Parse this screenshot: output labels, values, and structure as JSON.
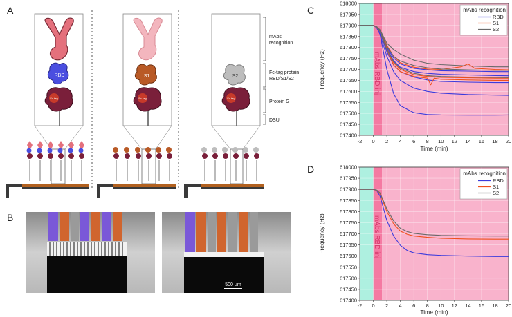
{
  "panel_labels": {
    "a": "A",
    "b": "B",
    "c": "C",
    "d": "D"
  },
  "schematic": {
    "inset_labels": {
      "rbd": "RBD",
      "s1": "S1",
      "s2": "S2",
      "fc_tag": "Fc-tag"
    },
    "bracket_labels": {
      "mabs_line1": "mAbs",
      "mabs_line2": "recognition",
      "fc_line1": "Fc-tag protein",
      "fc_line2": "RBD/S1/S2",
      "protein_g": "Protein G",
      "dsu": "DSU"
    },
    "colors": {
      "antibody": "#e4707c",
      "antibody_faded": "#f3b6be",
      "rbd": "#4a4ee0",
      "s1": "#b95a26",
      "s2": "#bdbdbd",
      "protein_g": "#7a1f3a",
      "fc_tag": "#c73a2a"
    }
  },
  "photos": {
    "scale_bar": "500 µm"
  },
  "chart_data": [
    {
      "panel": "C",
      "type": "line",
      "title": "mAbs recognition",
      "xlabel": "Time (min)",
      "ylabel": "Frequency (Hz)",
      "xlim": [
        -2,
        20
      ],
      "ylim": [
        617400,
        618000
      ],
      "xticks": [
        -2,
        0,
        2,
        4,
        6,
        8,
        10,
        12,
        14,
        16,
        18,
        20
      ],
      "yticks": [
        617400,
        617450,
        617500,
        617550,
        617600,
        617650,
        617700,
        617750,
        617800,
        617850,
        617900,
        617950,
        618000
      ],
      "shaded_regions": [
        {
          "from": -2,
          "to": 0,
          "color": "#aef0e0"
        },
        {
          "from": 0,
          "to": 1.3,
          "color": "#f47aa2"
        },
        {
          "from": 1.3,
          "to": 20,
          "color": "#f9b3cc"
        }
      ],
      "annotation": "mAbs RBD inj",
      "legend": [
        "RBD",
        "S1",
        "S2"
      ],
      "series_colors": {
        "RBD": "#3b3bdc",
        "S1": "#f0501e",
        "S2": "#6a6a6a"
      },
      "series": [
        {
          "name": "RBD",
          "x": [
            -2,
            0,
            0.5,
            1,
            2,
            3,
            4,
            6,
            8,
            10,
            14,
            18,
            20
          ],
          "values": [
            617901,
            617900,
            617890,
            617860,
            617700,
            617590,
            617535,
            617503,
            617495,
            617493,
            617492,
            617492,
            617493
          ]
        },
        {
          "name": "RBD",
          "x": [
            -2,
            0,
            0.5,
            1,
            2,
            3,
            4,
            6,
            8,
            10,
            14,
            18,
            20
          ],
          "values": [
            617901,
            617900,
            617890,
            617860,
            617760,
            617690,
            617650,
            617615,
            617600,
            617592,
            617586,
            617583,
            617582
          ]
        },
        {
          "name": "RBD",
          "x": [
            -2,
            0,
            0.5,
            1,
            2,
            3,
            4,
            6,
            8,
            10,
            14,
            18,
            20
          ],
          "values": [
            617901,
            617900,
            617892,
            617870,
            617780,
            617720,
            617690,
            617665,
            617652,
            617645,
            617642,
            617640,
            617640
          ]
        },
        {
          "name": "RBD",
          "x": [
            -2,
            0,
            0.5,
            1,
            2,
            3,
            4,
            6,
            8,
            10,
            14,
            18,
            20
          ],
          "values": [
            617901,
            617900,
            617893,
            617875,
            617795,
            617740,
            617710,
            617690,
            617682,
            617678,
            617675,
            617672,
            617671
          ]
        },
        {
          "name": "RBD",
          "x": [
            -2,
            0,
            0.5,
            1,
            2,
            3,
            4,
            6,
            8,
            10,
            14,
            18,
            20
          ],
          "values": [
            617901,
            617900,
            617893,
            617876,
            617800,
            617752,
            617725,
            617705,
            617698,
            617694,
            617692,
            617690,
            617690
          ]
        },
        {
          "name": "S1",
          "x": [
            -2,
            0,
            0.5,
            1,
            2,
            3,
            4,
            6,
            8,
            8.5,
            9,
            10,
            14,
            18,
            20
          ],
          "values": [
            617901,
            617900,
            617892,
            617872,
            617790,
            617720,
            617690,
            617668,
            617660,
            617630,
            617660,
            617655,
            617652,
            617650,
            617650
          ]
        },
        {
          "name": "S1",
          "x": [
            -2,
            0,
            0.5,
            1,
            2,
            3,
            4,
            6,
            8,
            10,
            13,
            14,
            15,
            18,
            20
          ],
          "values": [
            617901,
            617900,
            617894,
            617880,
            617810,
            617760,
            617730,
            617710,
            617702,
            617700,
            617712,
            617725,
            617705,
            617700,
            617698
          ]
        },
        {
          "name": "S1",
          "x": [
            -2,
            0,
            0.5,
            1,
            2,
            3,
            4,
            6,
            8,
            10,
            14,
            18,
            20
          ],
          "values": [
            617901,
            617900,
            617893,
            617875,
            617795,
            617730,
            617700,
            617676,
            617668,
            617664,
            617662,
            617660,
            617660
          ]
        },
        {
          "name": "S2",
          "x": [
            -2,
            0,
            0.5,
            1,
            2,
            3,
            4,
            6,
            8,
            10,
            14,
            18,
            20
          ],
          "values": [
            617901,
            617900,
            617895,
            617880,
            617820,
            617790,
            617770,
            617742,
            617728,
            617722,
            617716,
            617712,
            617712
          ]
        },
        {
          "name": "S2",
          "x": [
            -2,
            0,
            0.5,
            1,
            2,
            3,
            4,
            6,
            8,
            10,
            14,
            18,
            20
          ],
          "values": [
            617901,
            617900,
            617894,
            617878,
            617805,
            617760,
            617738,
            617718,
            617708,
            617702,
            617698,
            617696,
            617696
          ]
        },
        {
          "name": "S2",
          "x": [
            -2,
            0,
            0.5,
            1,
            2,
            3,
            4,
            6,
            8,
            10,
            14,
            18,
            20
          ],
          "values": [
            617901,
            617900,
            617893,
            617873,
            617790,
            617735,
            617705,
            617682,
            617672,
            617668,
            617665,
            617664,
            617663
          ]
        }
      ]
    },
    {
      "panel": "D",
      "type": "line",
      "title": "mAbs recognition",
      "xlabel": "Time (min)",
      "ylabel": "Frequency (Hz)",
      "xlim": [
        -2,
        20
      ],
      "ylim": [
        617400,
        618000
      ],
      "xticks": [
        -2,
        0,
        2,
        4,
        6,
        8,
        10,
        12,
        14,
        16,
        18,
        20
      ],
      "yticks": [
        617400,
        617450,
        617500,
        617550,
        617600,
        617650,
        617700,
        617750,
        617800,
        617850,
        617900,
        617950,
        618000
      ],
      "shaded_regions": [
        {
          "from": -2,
          "to": 0,
          "color": "#aef0e0"
        },
        {
          "from": 0,
          "to": 1.3,
          "color": "#f47aa2"
        },
        {
          "from": 1.3,
          "to": 20,
          "color": "#f9b3cc"
        }
      ],
      "annotation": "mAbs RBD inj",
      "legend": [
        "RBD",
        "S1",
        "S2"
      ],
      "series_colors": {
        "RBD": "#3b3bdc",
        "S1": "#f0501e",
        "S2": "#6a6a6a"
      },
      "series": [
        {
          "name": "RBD",
          "x": [
            -2,
            0,
            0.5,
            1,
            2,
            3,
            4,
            5,
            6,
            8,
            10,
            14,
            18,
            20
          ],
          "values": [
            617900,
            617900,
            617895,
            617870,
            617760,
            617690,
            617648,
            617625,
            617614,
            617606,
            617603,
            617600,
            617598,
            617598
          ]
        },
        {
          "name": "S1",
          "x": [
            -2,
            0,
            0.5,
            1,
            2,
            3,
            4,
            5,
            6,
            8,
            10,
            14,
            18,
            20
          ],
          "values": [
            617900,
            617900,
            617896,
            617880,
            617800,
            617745,
            617712,
            617698,
            617690,
            617684,
            617680,
            617677,
            617676,
            617676
          ]
        },
        {
          "name": "S2",
          "x": [
            -2,
            0,
            0.5,
            1,
            2,
            3,
            4,
            5,
            6,
            8,
            10,
            14,
            18,
            20
          ],
          "values": [
            617900,
            617900,
            617897,
            617884,
            617812,
            617758,
            617725,
            617710,
            617702,
            617696,
            617693,
            617691,
            617690,
            617690
          ]
        }
      ]
    }
  ]
}
